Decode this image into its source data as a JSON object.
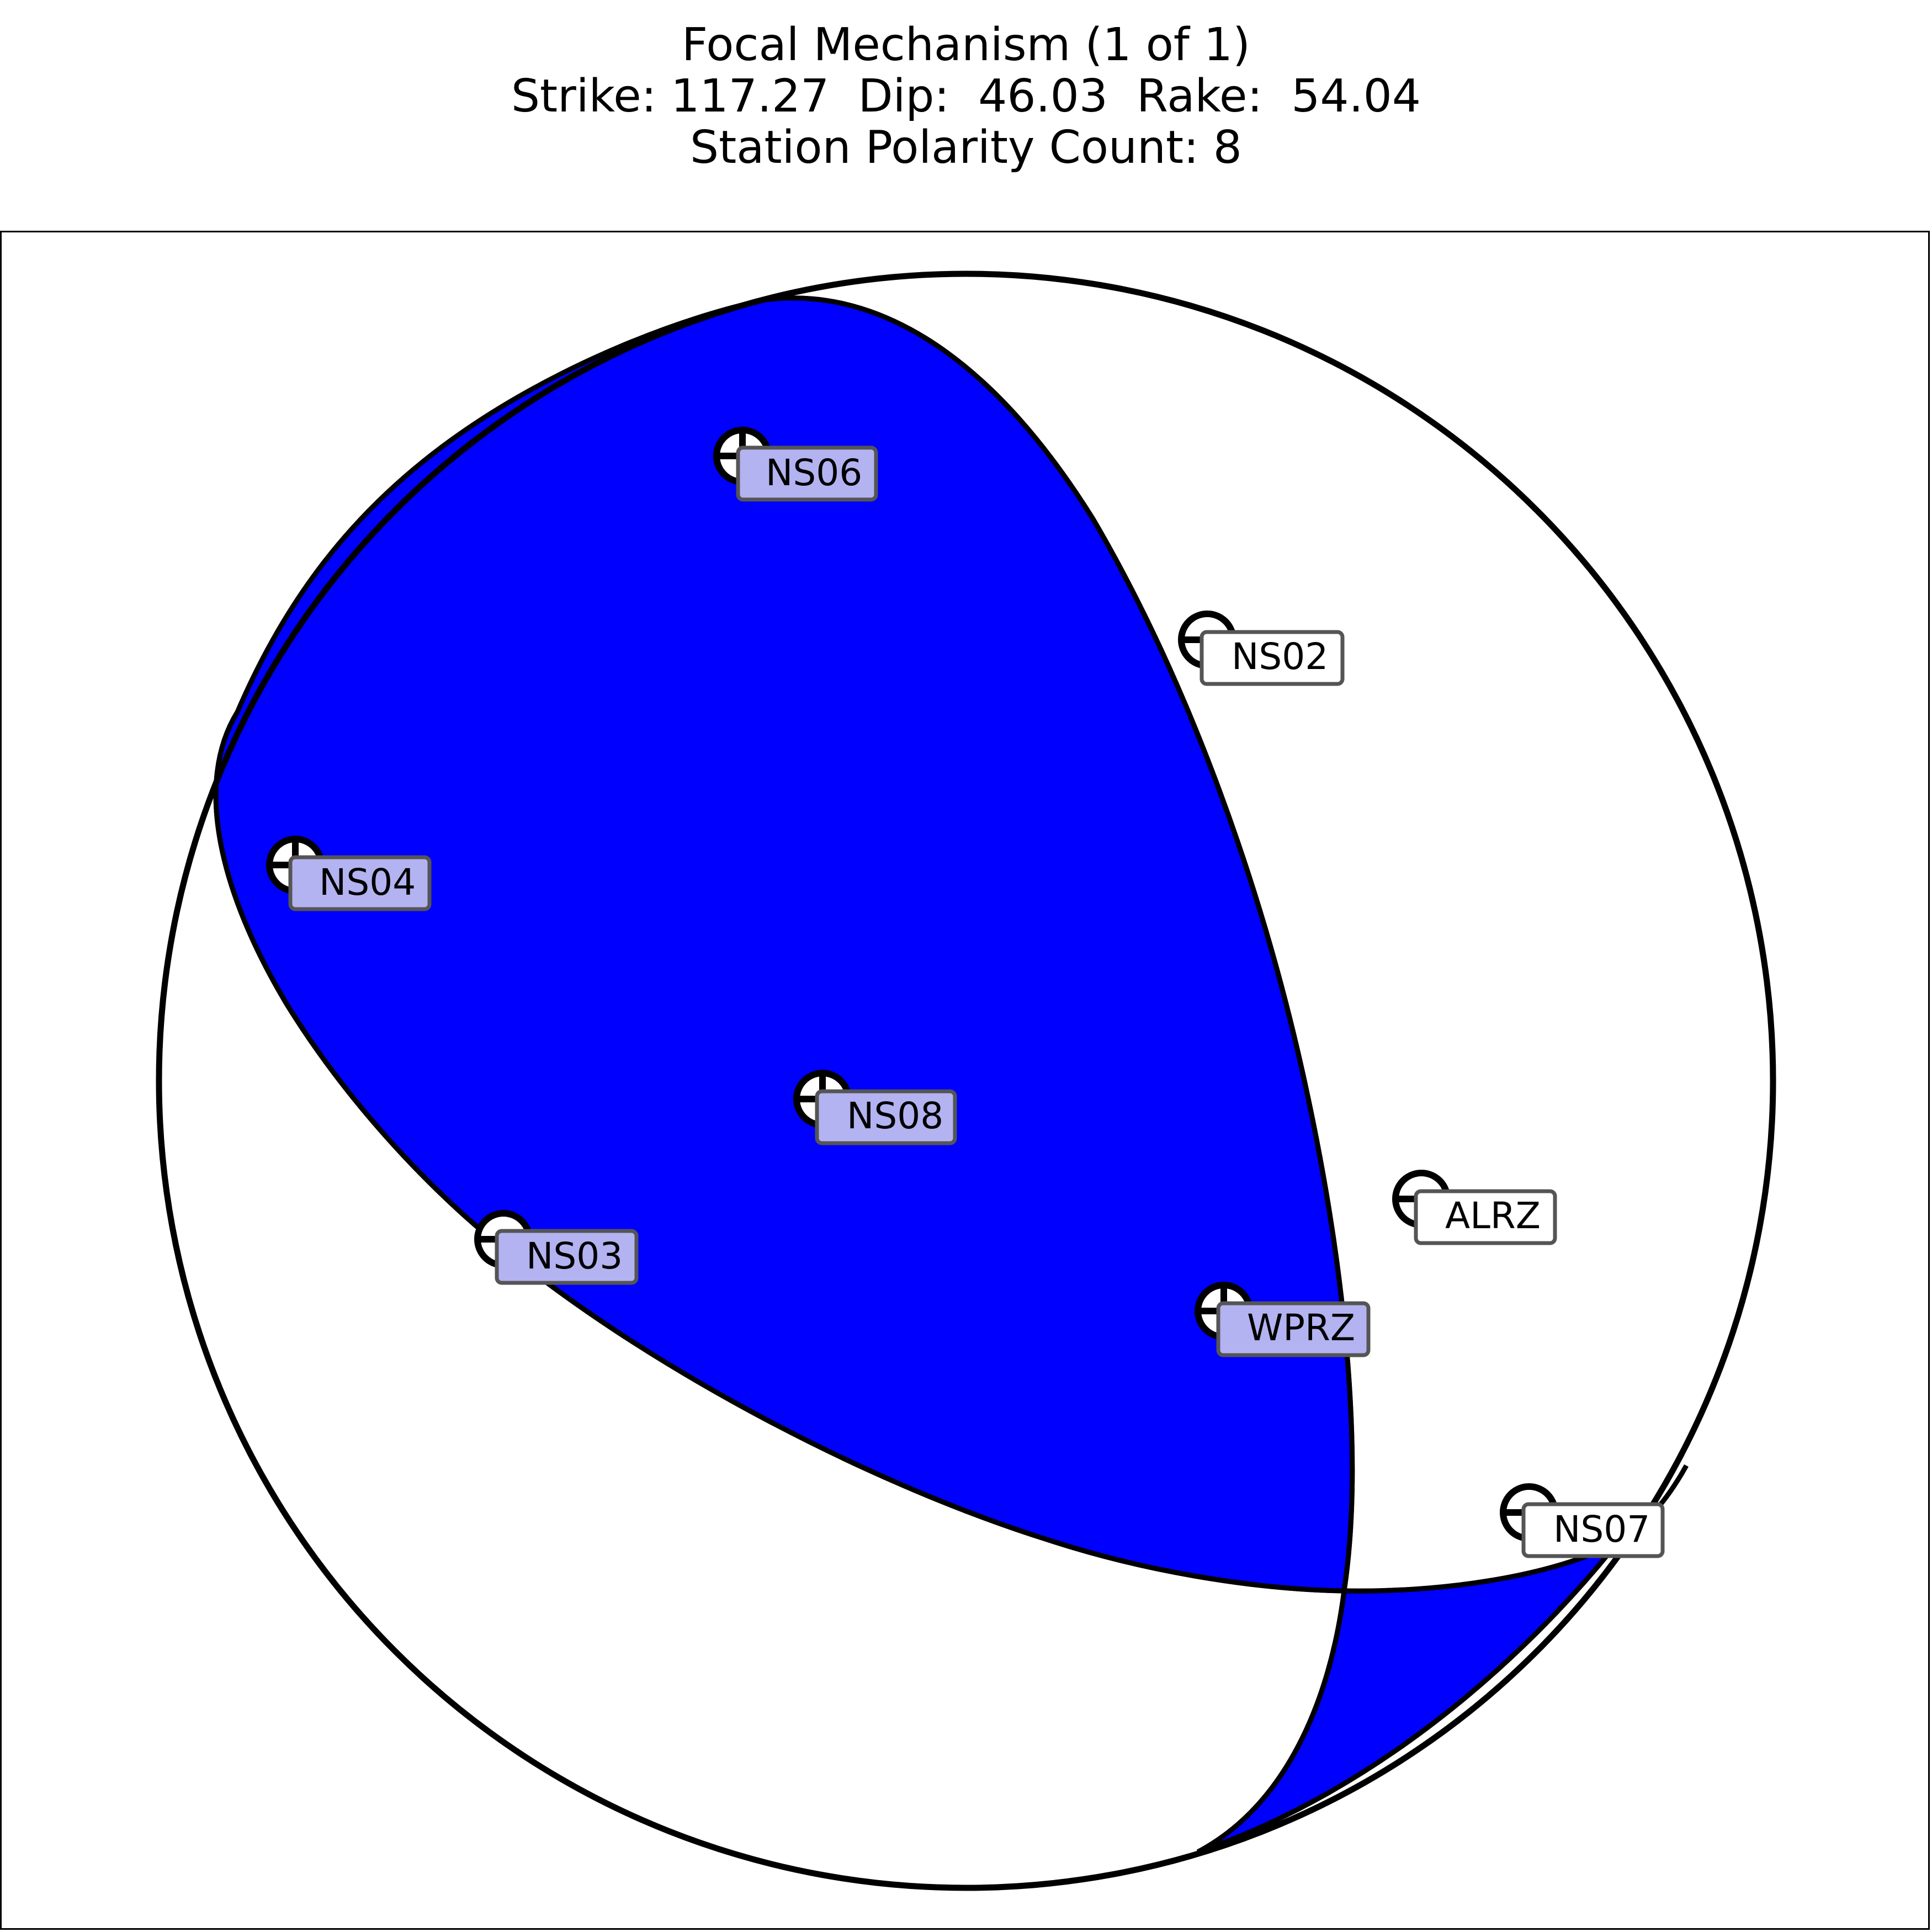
{
  "title": {
    "line1": "Focal Mechanism (1 of 1)",
    "line2": "Strike: 117.27  Dip:  46.03  Rake:  54.04",
    "line3": "Station Polarity Count: 8"
  },
  "colors": {
    "compression": "#0000ff",
    "dilatation": "#ffffff",
    "outline": "#000000",
    "label_fill_compression": "#b3b3f2",
    "label_fill_dilatation": "#ffffff"
  },
  "stations": [
    {
      "name": "NS06",
      "polarity": "+",
      "quadrant": "compression"
    },
    {
      "name": "NS02",
      "polarity": "-",
      "quadrant": "dilatation"
    },
    {
      "name": "NS04",
      "polarity": "+",
      "quadrant": "compression"
    },
    {
      "name": "NS08",
      "polarity": "+",
      "quadrant": "compression"
    },
    {
      "name": "ALRZ",
      "polarity": "-",
      "quadrant": "dilatation"
    },
    {
      "name": "NS03",
      "polarity": "-",
      "quadrant": "compression"
    },
    {
      "name": "WPRZ",
      "polarity": "+",
      "quadrant": "compression"
    },
    {
      "name": "NS07",
      "polarity": "-",
      "quadrant": "dilatation"
    }
  ]
}
